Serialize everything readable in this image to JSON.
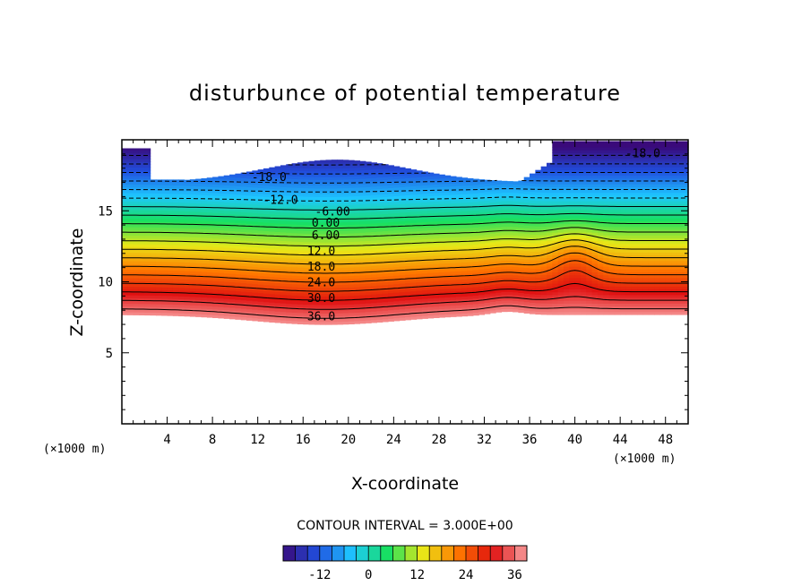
{
  "chart_data": {
    "type": "contour",
    "title": "disturbunce of potential temperature",
    "xlabel": "X-coordinate",
    "ylabel": "Z-coordinate",
    "x_unit": "(×1000 m)",
    "z_unit": "(×1000 m)",
    "xlim": [
      0,
      50
    ],
    "zlim": [
      0,
      20
    ],
    "x_ticks": [
      4,
      8,
      12,
      16,
      20,
      24,
      28,
      32,
      36,
      40,
      44,
      48
    ],
    "z_ticks": [
      5,
      10,
      15
    ],
    "contour_interval_text": "CONTOUR INTERVAL = 3.000E+00",
    "colorbar": {
      "min": -21,
      "max": 39,
      "ticks": [
        -12,
        0,
        12,
        24,
        36
      ],
      "tick_labels": [
        "-12",
        "0",
        "12",
        "24",
        "36"
      ],
      "colors": [
        "#3a0a7a",
        "#2050e0",
        "#1ec8ff",
        "#18e060",
        "#e8e818",
        "#ff7a00",
        "#e01010",
        "#f8a0a0"
      ]
    },
    "contour_labels": [
      {
        "text": "-18.0",
        "x": 13.0,
        "z": 17.4
      },
      {
        "text": "-12.0",
        "x": 14.0,
        "z": 15.8
      },
      {
        "text": "-18.0",
        "x": 46.0,
        "z": 19.1
      },
      {
        "text": "-6.00",
        "x": 18.6,
        "z": 15.0
      },
      {
        "text": "0.00",
        "x": 18.0,
        "z": 14.2
      },
      {
        "text": "6.00",
        "x": 18.0,
        "z": 13.3
      },
      {
        "text": "12.0",
        "x": 17.6,
        "z": 12.2
      },
      {
        "text": "18.0",
        "x": 17.6,
        "z": 11.1
      },
      {
        "text": "24.0",
        "x": 17.6,
        "z": 10.0
      },
      {
        "text": "30.0",
        "x": 17.6,
        "z": 8.9
      },
      {
        "text": "36.0",
        "x": 17.6,
        "z": 7.6
      }
    ]
  }
}
